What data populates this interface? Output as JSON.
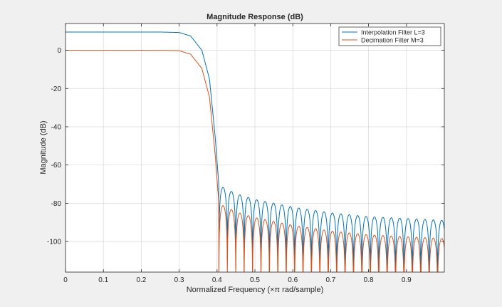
{
  "chart_data": {
    "type": "line",
    "title": "Magnitude Response (dB)",
    "xlabel": "Normalized Frequency  (×π rad/sample)",
    "ylabel": "Magnitude (dB)",
    "xlim": [
      0,
      1
    ],
    "ylim": [
      -116,
      14
    ],
    "x_ticks": [
      0,
      0.1,
      0.2,
      0.3,
      0.4,
      0.5,
      0.6,
      0.7,
      0.8,
      0.9
    ],
    "x_tick_labels": [
      "0",
      "0.1",
      "0.2",
      "0.3",
      "0.4",
      "0.5",
      "0.6",
      "0.7",
      "0.8",
      "0.9"
    ],
    "y_ticks": [
      0,
      -20,
      -40,
      -60,
      -80,
      -100
    ],
    "y_tick_labels": [
      "0",
      "-20",
      "-40",
      "-60",
      "-80",
      "-100"
    ],
    "grid": true,
    "legend_position": "top-right",
    "series": [
      {
        "name": "Interpolation Filter L=3",
        "color": "#0072BD",
        "passband_gain_db": 9.54,
        "envelope": {
          "x": [
            0,
            0.25,
            0.3,
            0.33,
            0.36,
            0.38,
            0.395,
            0.405,
            0.42,
            0.45,
            0.5,
            0.6,
            0.7,
            0.8,
            0.9,
            1.0
          ],
          "y": [
            9.54,
            9.54,
            9.3,
            7.5,
            0,
            -15,
            -45,
            -71,
            -72,
            -75,
            -78,
            -82,
            -85,
            -87,
            -88,
            -89
          ]
        },
        "stopband_nulls_start": 0.405,
        "null_spacing": 0.0222
      },
      {
        "name": "Decimation Filter M=3",
        "color": "#D95319",
        "passband_gain_db": 0,
        "envelope": {
          "x": [
            0,
            0.25,
            0.3,
            0.33,
            0.36,
            0.38,
            0.395,
            0.405,
            0.42,
            0.45,
            0.5,
            0.6,
            0.7,
            0.8,
            0.9,
            1.0
          ],
          "y": [
            0,
            0,
            -0.24,
            -2,
            -9.5,
            -24.5,
            -54.5,
            -80.5,
            -81.5,
            -84.5,
            -87.5,
            -91.5,
            -94.5,
            -96.5,
            -97.5,
            -98.5
          ]
        },
        "stopband_nulls_start": 0.405,
        "null_spacing": 0.0222
      }
    ]
  }
}
